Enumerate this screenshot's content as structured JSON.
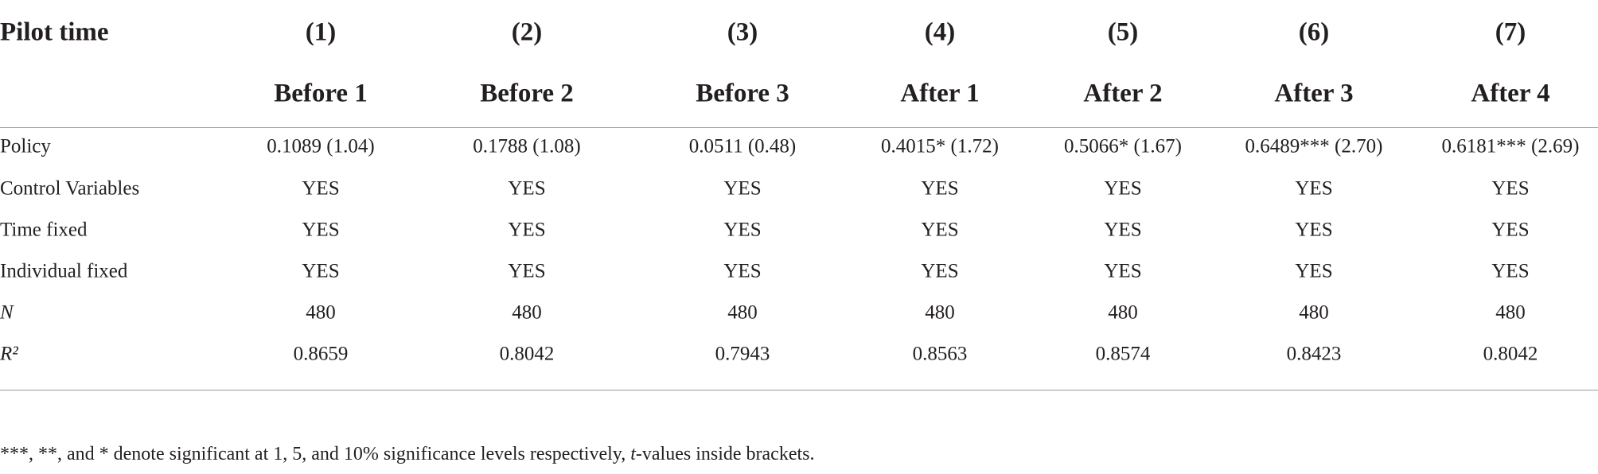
{
  "table": {
    "header": {
      "label": "Pilot time",
      "columns": [
        "(1)",
        "(2)",
        "(3)",
        "(4)",
        "(5)",
        "(6)",
        "(7)"
      ],
      "subcolumns": [
        "Before 1",
        "Before 2",
        "Before 3",
        "After 1",
        "After 2",
        "After 3",
        "After 4"
      ]
    },
    "rows": [
      {
        "label": "Policy",
        "cells": [
          "0.1089 (1.04)",
          "0.1788 (1.08)",
          "0.0511 (0.48)",
          "0.4015* (1.72)",
          "0.5066* (1.67)",
          "0.6489*** (2.70)",
          "0.6181*** (2.69)"
        ]
      },
      {
        "label": "Control Variables",
        "cells": [
          "YES",
          "YES",
          "YES",
          "YES",
          "YES",
          "YES",
          "YES"
        ]
      },
      {
        "label": "Time fixed",
        "cells": [
          "YES",
          "YES",
          "YES",
          "YES",
          "YES",
          "YES",
          "YES"
        ]
      },
      {
        "label": "Individual fixed",
        "cells": [
          "YES",
          "YES",
          "YES",
          "YES",
          "YES",
          "YES",
          "YES"
        ]
      },
      {
        "label": "N",
        "cells": [
          "480",
          "480",
          "480",
          "480",
          "480",
          "480",
          "480"
        ]
      },
      {
        "label": "R²",
        "cells": [
          "0.8659",
          "0.8042",
          "0.7943",
          "0.8563",
          "0.8574",
          "0.8423",
          "0.8042"
        ]
      }
    ]
  },
  "footnote": {
    "text": "***, **, and * denote significant at 1, 5, and 10% significance levels respectively, ",
    "italic": "t",
    "end": "-values inside brackets."
  }
}
